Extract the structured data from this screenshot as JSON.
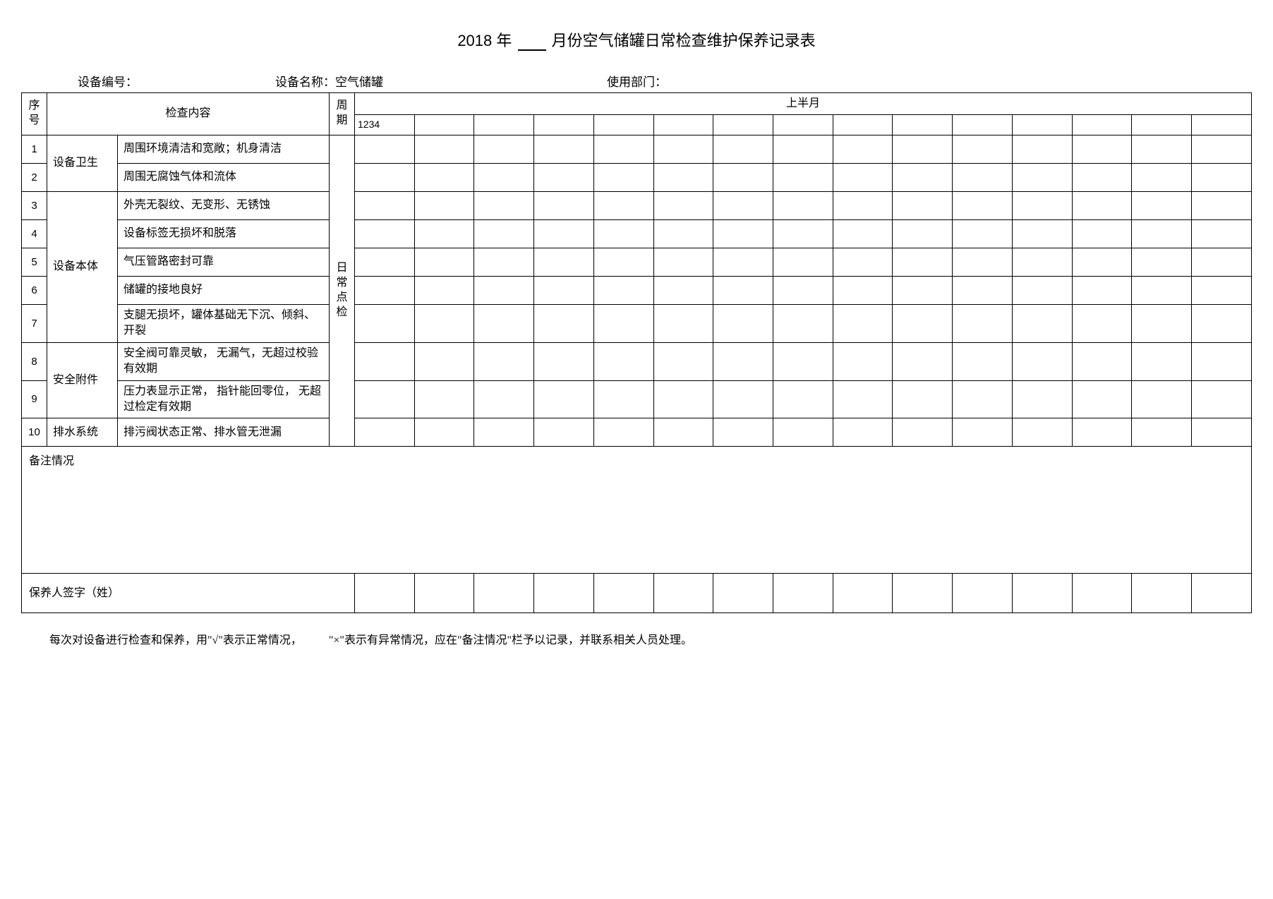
{
  "title_prefix": "2018",
  "title_year_char": "年",
  "title_suffix": "月份空气储罐日常检查维护保养记录表",
  "meta": {
    "device_no_label": "设备编号：",
    "device_name_label": "设备名称：",
    "device_name_value": "空气储罐",
    "dept_label": "使用部门："
  },
  "headers": {
    "seq": "序号",
    "content": "检查内容",
    "cycle": "周期",
    "half": "上半月",
    "days_label": "1234",
    "daily_check": "日常点检"
  },
  "categories": {
    "cat1": "设备卫生",
    "cat2": "设备本体",
    "cat3": "安全附件",
    "cat4": "排水系统"
  },
  "rows": [
    {
      "n": "1",
      "item": "周围环境清洁和宽敞；机身清洁"
    },
    {
      "n": "2",
      "item": "周围无腐蚀气体和流体"
    },
    {
      "n": "3",
      "item": "外壳无裂纹、无变形、无锈蚀"
    },
    {
      "n": "4",
      "item": "设备标签无损坏和脱落"
    },
    {
      "n": "5",
      "item": "气压管路密封可靠"
    },
    {
      "n": "6",
      "item": "储罐的接地良好"
    },
    {
      "n": "7",
      "item": "支腿无损坏，罐体基础无下沉、倾斜、开裂"
    },
    {
      "n": "8",
      "item": "安全阀可靠灵敏， 无漏气，无超过校验有效期"
    },
    {
      "n": "9",
      "item": "压力表显示正常， 指针能回零位， 无超过检定有效期"
    },
    {
      "n": "10",
      "item": "排污阀状态正常、排水管无泄漏"
    }
  ],
  "remark_label": "备注情况",
  "sig_label": "保养人签字（姓）",
  "footnote_a": "每次对设备进行检查和保养，用\"√\"表示正常情况，",
  "footnote_b": "\"×\"表示有异常情况，应在\"备注情况\"栏予以记录，并联系相关人员处理。",
  "day_columns_count": 15,
  "colors": {
    "border": "#000000",
    "background": "#ffffff",
    "text": "#000000"
  }
}
